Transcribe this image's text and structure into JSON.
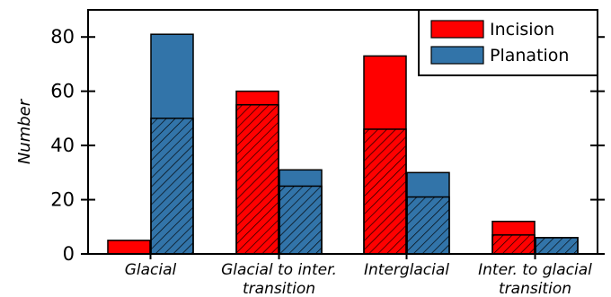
{
  "chart_data": {
    "type": "bar",
    "stacked": true,
    "ylabel": "Number",
    "xlabel": "",
    "ylim": [
      0,
      90
    ],
    "yticks": [
      0,
      20,
      40,
      60,
      80
    ],
    "categories": [
      [
        "Glacial"
      ],
      [
        "Glacial to inter.",
        "transition"
      ],
      [
        "Interglacial"
      ],
      [
        "Inter. to glacial",
        "transition"
      ]
    ],
    "series": [
      {
        "name": "Incision",
        "color": "#ff0000",
        "hatched_values": [
          0,
          55,
          46,
          7
        ],
        "total_values": [
          5,
          60,
          73,
          12
        ]
      },
      {
        "name": "Planation",
        "color": "#3274a9",
        "hatched_values": [
          50,
          25,
          21,
          6
        ],
        "total_values": [
          81,
          31,
          30,
          6
        ]
      }
    ],
    "legend": {
      "position": "top-right",
      "entries": [
        "Incision",
        "Planation"
      ]
    },
    "grid": false,
    "hatch": "diagonal"
  }
}
